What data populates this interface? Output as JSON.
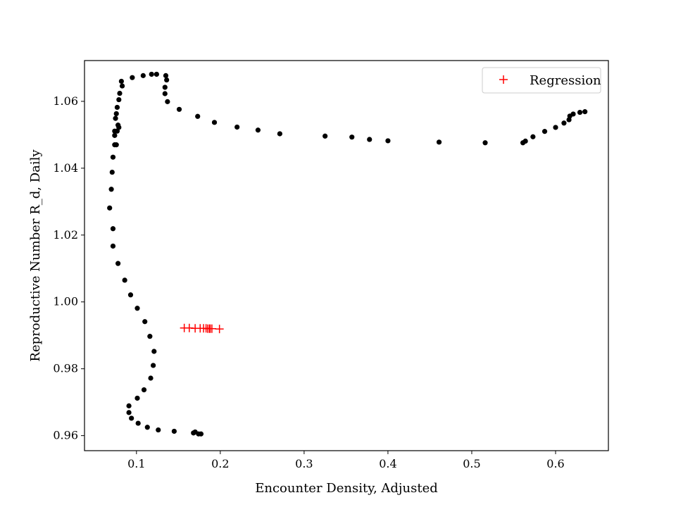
{
  "chart_data": {
    "type": "scatter",
    "title": "",
    "xlabel": "Encounter Density, Adjusted",
    "ylabel": "Reproductive Number R_d, Daily",
    "xlim": [
      0.038,
      0.663
    ],
    "ylim": [
      0.9555,
      1.0722
    ],
    "xticks": [
      0.1,
      0.2,
      0.3,
      0.4,
      0.5,
      0.6
    ],
    "xtick_labels": [
      "0.1",
      "0.2",
      "0.3",
      "0.4",
      "0.5",
      "0.6"
    ],
    "yticks": [
      0.96,
      0.98,
      1.0,
      1.02,
      1.04,
      1.06
    ],
    "ytick_labels": [
      "0.96",
      "0.98",
      "1.00",
      "1.02",
      "1.04",
      "1.06"
    ],
    "grid": false,
    "legend": {
      "position": "top-right",
      "entries": [
        "Regression"
      ]
    },
    "series": [
      {
        "marker": "dot",
        "color": "#000000",
        "x": [
          0.174,
          0.17,
          0.177,
          0.168,
          0.145,
          0.126,
          0.113,
          0.102,
          0.094,
          0.091,
          0.091,
          0.101,
          0.109,
          0.117,
          0.12,
          0.121,
          0.116,
          0.11,
          0.101,
          0.093,
          0.086,
          0.078,
          0.072,
          0.072,
          0.068,
          0.07,
          0.071,
          0.072,
          0.074,
          0.074,
          0.074,
          0.075,
          0.076,
          0.077,
          0.079,
          0.08,
          0.083,
          0.082,
          0.079,
          0.078,
          0.077,
          0.076,
          0.095,
          0.108,
          0.118,
          0.124,
          0.135,
          0.136,
          0.134,
          0.134,
          0.137,
          0.151,
          0.173,
          0.193,
          0.22,
          0.245,
          0.271,
          0.325,
          0.357,
          0.378,
          0.4,
          0.461,
          0.516,
          0.561,
          0.564,
          0.573,
          0.587,
          0.6,
          0.61,
          0.616,
          0.617,
          0.621,
          0.629,
          0.635
        ],
        "y": [
          0.9605,
          0.9611,
          0.9605,
          0.9608,
          0.9613,
          0.9617,
          0.9625,
          0.9637,
          0.9652,
          0.9669,
          0.9689,
          0.9712,
          0.9737,
          0.9772,
          0.981,
          0.9852,
          0.9897,
          0.9941,
          0.9981,
          1.0021,
          1.0065,
          1.0115,
          1.0167,
          1.0219,
          1.0281,
          1.0337,
          1.0388,
          1.0433,
          1.047,
          1.0498,
          1.0511,
          1.0549,
          1.0563,
          1.0582,
          1.0605,
          1.0624,
          1.0646,
          1.066,
          1.0522,
          1.0529,
          1.0511,
          1.047,
          1.0671,
          1.0677,
          1.0681,
          1.0681,
          1.0677,
          1.0664,
          1.0642,
          1.0623,
          1.0599,
          1.0576,
          1.0555,
          1.0537,
          1.0523,
          1.0514,
          1.0503,
          1.0496,
          1.0493,
          1.0486,
          1.0482,
          1.0478,
          1.0476,
          1.0476,
          1.0481,
          1.0494,
          1.051,
          1.0522,
          1.0535,
          1.0545,
          1.0556,
          1.0562,
          1.0567,
          1.0569
        ]
      },
      {
        "name": "Regression",
        "marker": "plus",
        "color": "#ff0000",
        "x": [
          0.157,
          0.163,
          0.17,
          0.176,
          0.18,
          0.183,
          0.185,
          0.187,
          0.188,
          0.19,
          0.199
        ],
        "y": [
          0.9922,
          0.9922,
          0.9921,
          0.9921,
          0.9921,
          0.9921,
          0.992,
          0.992,
          0.992,
          0.992,
          0.9919
        ]
      }
    ]
  }
}
